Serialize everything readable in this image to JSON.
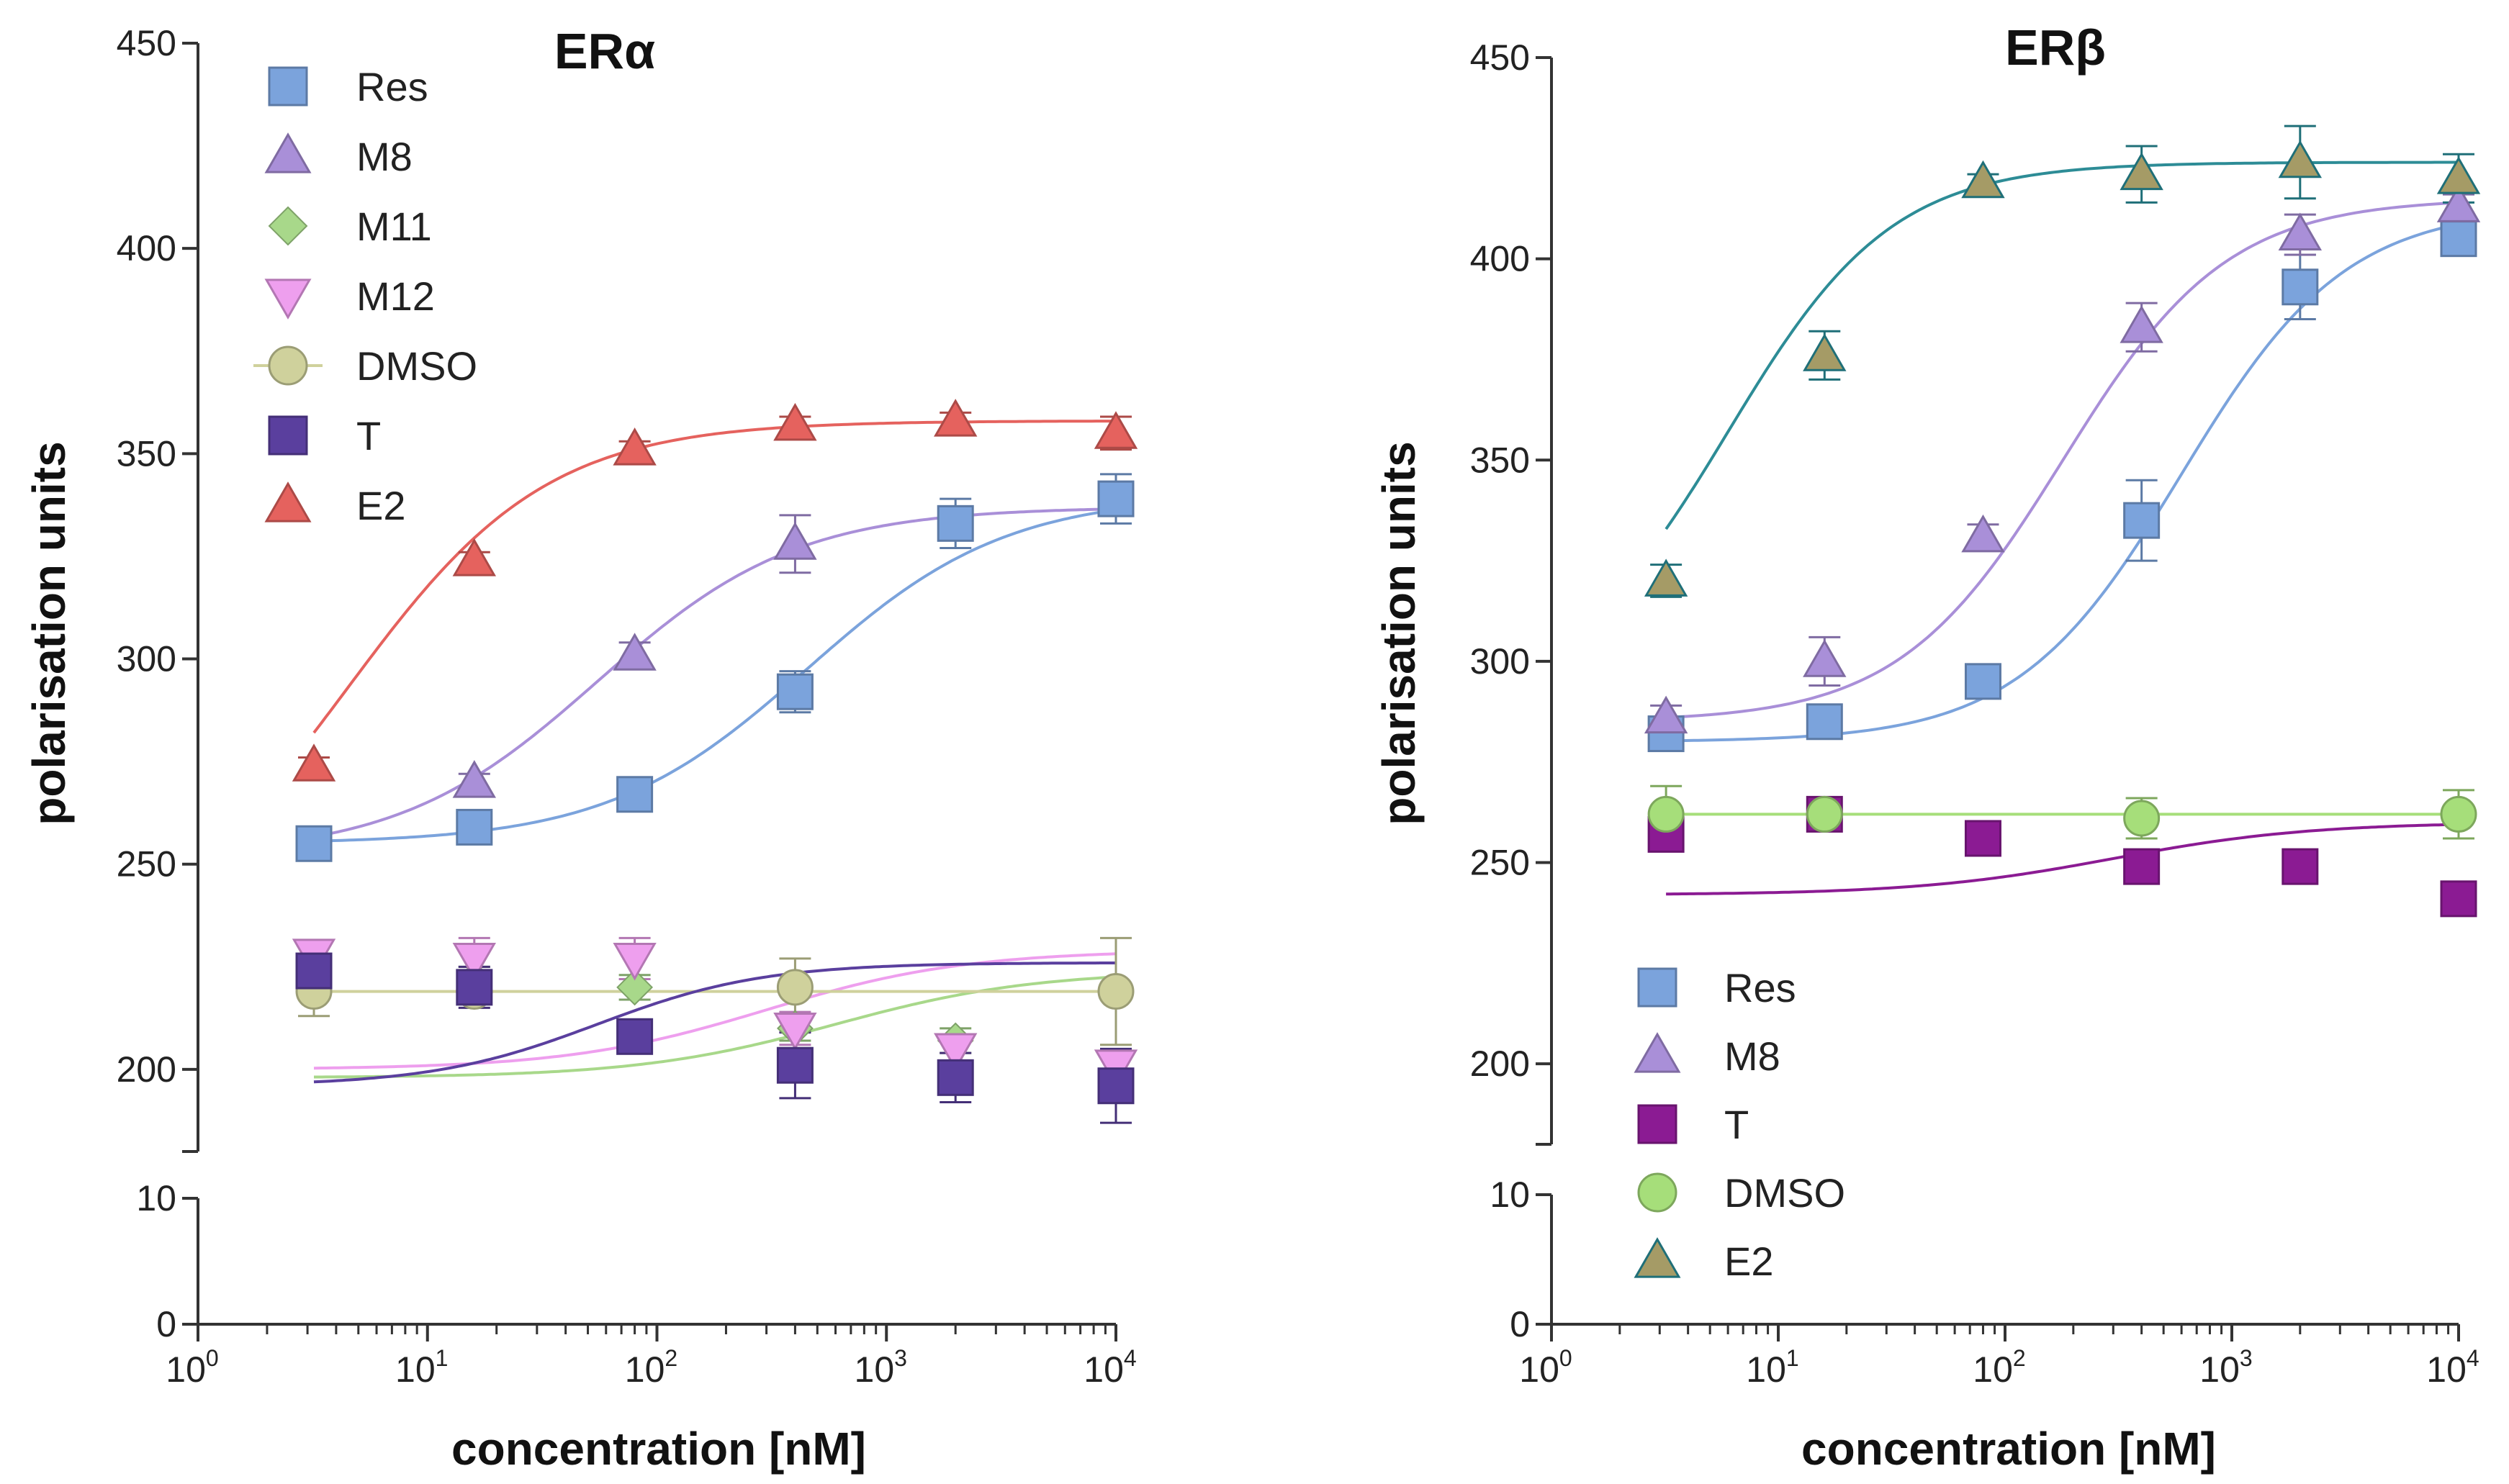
{
  "chart_data": [
    {
      "type": "scatter",
      "title": "ERα",
      "xlabel": "concentration [nM]",
      "ylabel": "polarisation units",
      "xscale": "log",
      "xlim": [
        1,
        10000
      ],
      "ylim_upper": [
        180,
        450
      ],
      "ylim_lower": [
        0,
        10
      ],
      "y_ticks_upper": [
        200,
        250,
        300,
        350,
        400,
        450
      ],
      "y_ticks_lower": [
        0,
        10
      ],
      "x_ticks": [
        {
          "base": "10",
          "exp": "0"
        },
        {
          "base": "10",
          "exp": "1"
        },
        {
          "base": "10",
          "exp": "2"
        },
        {
          "base": "10",
          "exp": "3"
        },
        {
          "base": "10",
          "exp": "4"
        }
      ],
      "legend_position": "top-left",
      "x": [
        3.2,
        16,
        80,
        400,
        2000,
        10000
      ],
      "series": [
        {
          "name": "Res",
          "color": "#7ba3dc",
          "marker": "square",
          "values": [
            255,
            259,
            267,
            292,
            333,
            339
          ],
          "errors": [
            4,
            3,
            4,
            5,
            6,
            6
          ],
          "fit": {
            "bottom": 255,
            "top": 340,
            "ec50": 450,
            "hill": 1.0
          }
        },
        {
          "name": "M8",
          "color": "#a98fd8",
          "marker": "triangle",
          "values": [
            null,
            270,
            301,
            328,
            null,
            null
          ],
          "errors": [
            0,
            2,
            3,
            7,
            0,
            0
          ],
          "fit": {
            "bottom": 252,
            "top": 337,
            "ec50": 55,
            "hill": 1.0
          }
        },
        {
          "name": "M11",
          "color": "#a8d88a",
          "marker": "diamond",
          "values": [
            222,
            222,
            220,
            210,
            207,
            197
          ],
          "errors": [
            3,
            3,
            3,
            3,
            3,
            3
          ],
          "fit": {
            "bottom": 198,
            "top": 224,
            "ec50": 600,
            "hill": 1.0
          }
        },
        {
          "name": "M12",
          "color": "#ee9fee",
          "marker": "triangle-down",
          "values": [
            228,
            227,
            227,
            210,
            205,
            201
          ],
          "errors": [
            3,
            5,
            5,
            4,
            3,
            3
          ],
          "fit": {
            "bottom": 200,
            "top": 229,
            "ec50": 300,
            "hill": 1.0
          }
        },
        {
          "name": "DMSO",
          "color": "#cfd19c",
          "marker": "circle",
          "values": [
            219,
            219,
            null,
            220,
            null,
            219
          ],
          "errors": [
            6,
            3,
            0,
            7,
            0,
            13
          ],
          "fit": {
            "bottom": 219,
            "top": 219,
            "ec50": 100,
            "hill": 1.0
          }
        },
        {
          "name": "T",
          "color": "#5a3f9e",
          "marker": "square",
          "values": [
            224,
            220,
            208,
            201,
            198,
            196
          ],
          "errors": [
            3,
            5,
            3,
            8,
            6,
            9
          ],
          "fit": {
            "bottom": 196,
            "top": 226,
            "ec50": 55,
            "hill": 1.2
          }
        },
        {
          "name": "E2",
          "color": "#e5625e",
          "marker": "triangle",
          "values": [
            274,
            324,
            351,
            357,
            358,
            355
          ],
          "errors": [
            2,
            2,
            2,
            2,
            2,
            4
          ],
          "fit": {
            "bottom": 228,
            "top": 358,
            "ec50": 4.5,
            "hill": 1.0
          }
        }
      ]
    },
    {
      "type": "scatter",
      "title": "ERβ",
      "xlabel": "concentration [nM]",
      "ylabel": "polarisation units",
      "xscale": "log",
      "xlim": [
        1,
        10000
      ],
      "ylim_upper": [
        180,
        450
      ],
      "ylim_lower": [
        0,
        10
      ],
      "y_ticks_upper": [
        200,
        250,
        300,
        350,
        400,
        450
      ],
      "y_ticks_lower": [
        0,
        10
      ],
      "x_ticks": [
        {
          "base": "10",
          "exp": "0"
        },
        {
          "base": "10",
          "exp": "1"
        },
        {
          "base": "10",
          "exp": "2"
        },
        {
          "base": "10",
          "exp": "3"
        },
        {
          "base": "10",
          "exp": "4"
        }
      ],
      "legend_position": "bottom-left",
      "x": [
        3.2,
        16,
        80,
        400,
        2000,
        10000
      ],
      "series": [
        {
          "name": "Res",
          "color": "#7ba3dc",
          "marker": "square",
          "values": [
            282,
            285,
            295,
            335,
            393,
            405
          ],
          "errors": [
            3,
            3,
            3,
            10,
            8,
            4
          ],
          "fit": {
            "bottom": 280,
            "top": 413,
            "ec50": 600,
            "hill": 1.2
          }
        },
        {
          "name": "M8",
          "color": "#a98fd8",
          "marker": "triangle",
          "values": [
            286,
            300,
            331,
            383,
            406,
            413
          ],
          "errors": [
            3,
            6,
            3,
            6,
            5,
            3
          ],
          "fit": {
            "bottom": 285,
            "top": 415,
            "ec50": 180,
            "hill": 1.2
          }
        },
        {
          "name": "T",
          "color": "#8b1b93",
          "marker": "square",
          "values": [
            257,
            262,
            256,
            249,
            249,
            241
          ],
          "errors": [
            3,
            3,
            3,
            3,
            2,
            3
          ],
          "fit": {
            "bottom": 242,
            "top": 260,
            "ec50": 300,
            "hill": 1.0
          }
        },
        {
          "name": "DMSO",
          "color": "#a6de7a",
          "marker": "circle",
          "values": [
            262,
            262,
            null,
            261,
            null,
            262
          ],
          "errors": [
            7,
            3,
            0,
            5,
            0,
            6
          ],
          "fit": {
            "bottom": 262,
            "top": 262,
            "ec50": 100,
            "hill": 1.0
          }
        },
        {
          "name": "E2",
          "color": "#a59b66",
          "marker": "triangle",
          "values": [
            320,
            376,
            419,
            421,
            424,
            420
          ],
          "errors": [
            4,
            6,
            2,
            7,
            9,
            6
          ],
          "fit": {
            "bottom": 290,
            "top": 424,
            "ec50": 6,
            "hill": 1.2
          },
          "outline": "#1f6f78",
          "line": "#2d8c96"
        }
      ]
    }
  ]
}
